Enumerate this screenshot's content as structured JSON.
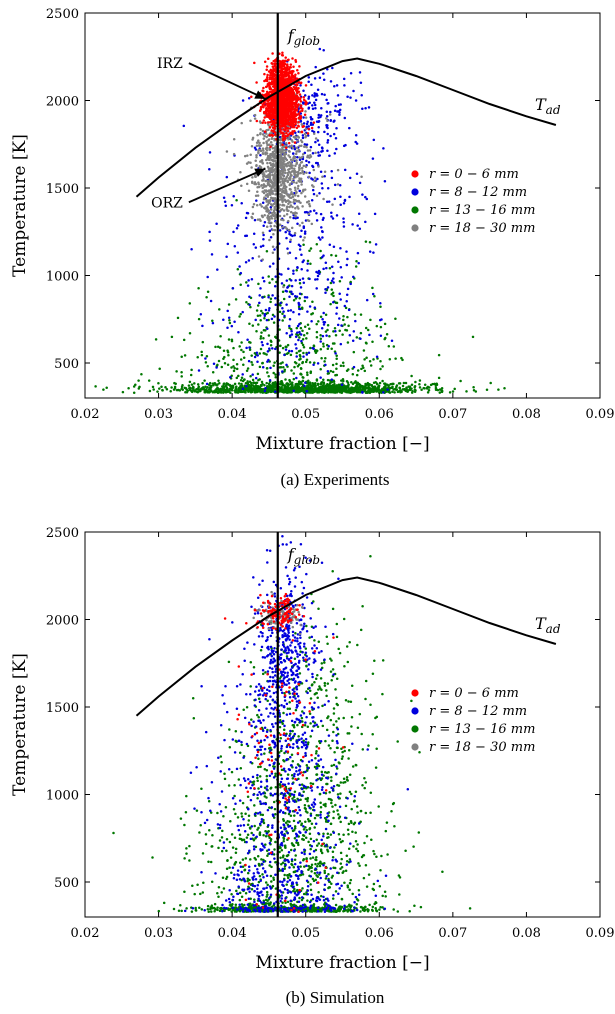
{
  "chart_data": [
    {
      "type": "scatter",
      "caption": "(a) Experiments",
      "xlabel": "Mixture fraction [−]",
      "ylabel": "Temperature [K]",
      "xlim": [
        0.02,
        0.09
      ],
      "ylim": [
        300,
        2500
      ],
      "x_ticks": [
        "0.02",
        "0.03",
        "0.04",
        "0.05",
        "0.06",
        "0.07",
        "0.08",
        "0.09"
      ],
      "y_ticks": [
        "500",
        "1000",
        "1500",
        "2000",
        "2500"
      ],
      "vertical_line": {
        "x": 0.0462,
        "label": "f_glob"
      },
      "curve_label": "T_ad",
      "adiabatic_curve": [
        [
          0.027,
          1450
        ],
        [
          0.03,
          1560
        ],
        [
          0.035,
          1730
        ],
        [
          0.04,
          1880
        ],
        [
          0.045,
          2020
        ],
        [
          0.05,
          2140
        ],
        [
          0.055,
          2225
        ],
        [
          0.057,
          2240
        ],
        [
          0.06,
          2210
        ],
        [
          0.065,
          2140
        ],
        [
          0.07,
          2060
        ],
        [
          0.075,
          1980
        ],
        [
          0.08,
          1910
        ],
        [
          0.084,
          1860
        ]
      ],
      "annotations": [
        {
          "text": "IRZ",
          "tx": 0.0333,
          "ty": 2185,
          "ax": 0.0445,
          "ay": 2010
        },
        {
          "text": "ORZ",
          "tx": 0.0333,
          "ty": 1390,
          "ax": 0.0445,
          "ay": 1610
        }
      ],
      "legend": {
        "position": "right",
        "entries": [
          "r = 0 − 6 mm",
          "r = 8 − 12 mm",
          "r = 13 − 16 mm",
          "r = 18 − 30 mm"
        ]
      },
      "series": [
        {
          "color": "#ff0000",
          "clusters": [
            {
              "n": 1400,
              "x": 0.0468,
              "sx": 0.0012,
              "y": 1990,
              "sy": 85
            },
            {
              "n": 200,
              "x": 0.0468,
              "sx": 0.0009,
              "y": 2150,
              "sy": 50
            }
          ]
        },
        {
          "color": "#0000dd",
          "clusters": [
            {
              "n": 250,
              "x": 0.0505,
              "sx": 0.003,
              "y": 1880,
              "sy": 140
            },
            {
              "n": 380,
              "x": 0.049,
              "sx": 0.0055,
              "y": 1150,
              "sy": 380
            },
            {
              "n": 90,
              "x": 0.048,
              "sx": 0.006,
              "y": 600,
              "sy": 180
            }
          ]
        },
        {
          "color": "#007700",
          "clusters": [
            {
              "n": 1300,
              "x": 0.049,
              "sx": 0.0085,
              "y": 350,
              "sy": 22
            },
            {
              "n": 360,
              "x": 0.048,
              "sx": 0.0075,
              "y": 520,
              "sy": 140
            },
            {
              "n": 130,
              "x": 0.048,
              "sx": 0.0055,
              "y": 820,
              "sy": 220
            }
          ]
        },
        {
          "color": "#808080",
          "clusters": [
            {
              "n": 800,
              "x": 0.0462,
              "sx": 0.0018,
              "y": 1580,
              "sy": 170
            },
            {
              "n": 150,
              "x": 0.0478,
              "sx": 0.003,
              "y": 1700,
              "sy": 160
            }
          ]
        }
      ]
    },
    {
      "type": "scatter",
      "caption": "(b) Simulation",
      "xlabel": "Mixture fraction [−]",
      "ylabel": "Temperature [K]",
      "xlim": [
        0.02,
        0.09
      ],
      "ylim": [
        300,
        2500
      ],
      "x_ticks": [
        "0.02",
        "0.03",
        "0.04",
        "0.05",
        "0.06",
        "0.07",
        "0.08",
        "0.09"
      ],
      "y_ticks": [
        "500",
        "1000",
        "1500",
        "2000",
        "2500"
      ],
      "vertical_line": {
        "x": 0.0462,
        "label": "f_glob"
      },
      "curve_label": "T_ad",
      "adiabatic_curve": [
        [
          0.027,
          1450
        ],
        [
          0.03,
          1560
        ],
        [
          0.035,
          1730
        ],
        [
          0.04,
          1880
        ],
        [
          0.045,
          2020
        ],
        [
          0.05,
          2140
        ],
        [
          0.055,
          2225
        ],
        [
          0.057,
          2240
        ],
        [
          0.06,
          2210
        ],
        [
          0.065,
          2140
        ],
        [
          0.07,
          2060
        ],
        [
          0.075,
          1980
        ],
        [
          0.08,
          1910
        ],
        [
          0.084,
          1860
        ]
      ],
      "annotations": [],
      "legend": {
        "position": "right",
        "entries": [
          "r = 0 − 6 mm",
          "r = 8 − 12 mm",
          "r = 13 − 16 mm",
          "r = 18 − 30 mm"
        ]
      },
      "series": [
        {
          "color": "#ff0000",
          "clusters": [
            {
              "n": 120,
              "x": 0.0465,
              "sx": 0.0014,
              "y": 2040,
              "sy": 45
            },
            {
              "n": 100,
              "x": 0.047,
              "sx": 0.003,
              "y": 1200,
              "sy": 450
            }
          ]
        },
        {
          "color": "#0000dd",
          "clusters": [
            {
              "n": 420,
              "x": 0.047,
              "sx": 0.002,
              "y": 1820,
              "sy": 240
            },
            {
              "n": 520,
              "x": 0.0465,
              "sx": 0.0045,
              "y": 1050,
              "sy": 400
            },
            {
              "n": 240,
              "x": 0.047,
              "sx": 0.005,
              "y": 420,
              "sy": 130
            }
          ]
        },
        {
          "color": "#007700",
          "clusters": [
            {
              "n": 450,
              "x": 0.0475,
              "sx": 0.006,
              "y": 340,
              "sy": 20
            },
            {
              "n": 650,
              "x": 0.048,
              "sx": 0.0062,
              "y": 620,
              "sy": 250
            },
            {
              "n": 380,
              "x": 0.05,
              "sx": 0.0052,
              "y": 1150,
              "sy": 300
            },
            {
              "n": 120,
              "x": 0.051,
              "sx": 0.004,
              "y": 1650,
              "sy": 230
            }
          ]
        },
        {
          "color": "#808080",
          "clusters": [
            {
              "n": 120,
              "x": 0.0462,
              "sx": 0.0015,
              "y": 2030,
              "sy": 40
            }
          ]
        }
      ]
    }
  ]
}
